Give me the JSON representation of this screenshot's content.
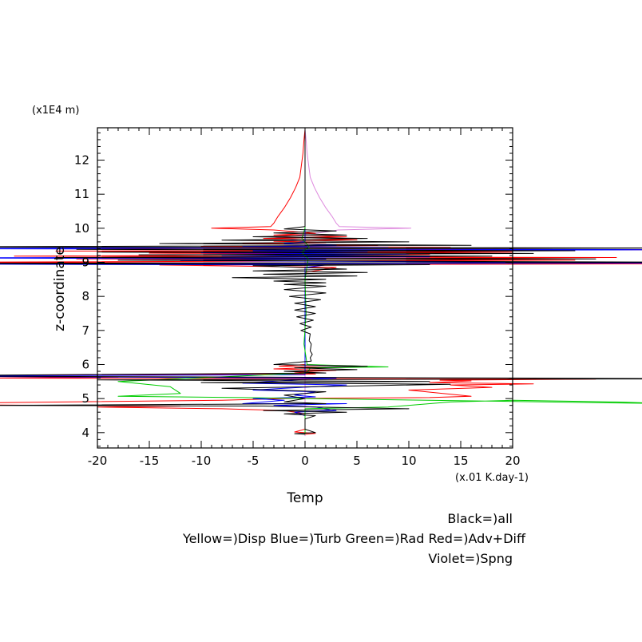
{
  "chart_data": {
    "type": "line",
    "xlabel": "Temp",
    "x_units": "(x.01 K.day-1)",
    "ylabel": "z-coordinate",
    "y_units": "(x1E4 m)",
    "xlim": [
      -20,
      20
    ],
    "ylim": [
      3.55,
      12.95
    ],
    "grid": false,
    "x_ticks": [
      -20,
      -15,
      -10,
      -5,
      0,
      5,
      10,
      15,
      20
    ],
    "y_ticks": [
      4,
      5,
      6,
      7,
      8,
      9,
      10,
      11,
      12
    ],
    "legend": [
      "Black=)all",
      "Yellow=)Disp Blue=)Turb Green=)Rad Red=)Adv+Diff",
      "Violet=)Spng"
    ],
    "series": [
      {
        "name": "Violet=)Spng",
        "color": "#dd88dd",
        "points": [
          [
            0,
            12.9
          ],
          [
            0.1,
            12.6
          ],
          [
            0.2,
            12.2
          ],
          [
            0.5,
            11.5
          ],
          [
            0.9,
            11.2
          ],
          [
            1.4,
            10.9
          ],
          [
            2.0,
            10.6
          ],
          [
            2.6,
            10.35
          ],
          [
            3.0,
            10.15
          ],
          [
            3.3,
            10.05
          ],
          [
            10.2,
            10.0
          ],
          [
            3.2,
            9.95
          ],
          [
            2.2,
            9.9
          ],
          [
            1.0,
            9.85
          ],
          [
            -2,
            9.75
          ],
          [
            -3,
            9.7
          ],
          [
            -1,
            9.65
          ],
          [
            0,
            9.6
          ],
          [
            0,
            9.0
          ],
          [
            0,
            3.9
          ]
        ]
      },
      {
        "name": "Red=)Adv+Diff",
        "color": "#ff0000",
        "points": [
          [
            0,
            12.9
          ],
          [
            -0.1,
            12.6
          ],
          [
            -0.2,
            12.2
          ],
          [
            -0.5,
            11.5
          ],
          [
            -0.9,
            11.2
          ],
          [
            -1.4,
            10.9
          ],
          [
            -2.0,
            10.6
          ],
          [
            -2.6,
            10.35
          ],
          [
            -3.0,
            10.15
          ],
          [
            -3.3,
            10.05
          ],
          [
            -9,
            10.0
          ],
          [
            -3,
            9.95
          ],
          [
            -1,
            9.9
          ],
          [
            1,
            9.85
          ],
          [
            -3,
            9.8
          ],
          [
            4,
            9.75
          ],
          [
            -4,
            9.7
          ],
          [
            5,
            9.66
          ],
          [
            -3,
            9.62
          ],
          [
            2,
            9.58
          ],
          [
            -6,
            9.55
          ],
          [
            7,
            9.5
          ],
          [
            -10,
            9.47
          ],
          [
            14,
            9.44
          ],
          [
            -33,
            9.4
          ],
          [
            35,
            9.37
          ],
          [
            -24,
            9.33
          ],
          [
            20,
            9.3
          ],
          [
            -15,
            9.27
          ],
          [
            12,
            9.23
          ],
          [
            -28,
            9.18
          ],
          [
            30,
            9.14
          ],
          [
            -22,
            9.1
          ],
          [
            26,
            9.06
          ],
          [
            -38,
            9.0
          ],
          [
            40,
            8.96
          ],
          [
            -14,
            8.92
          ],
          [
            3,
            8.85
          ],
          [
            0,
            8.7
          ],
          [
            0,
            6.0
          ],
          [
            -2.5,
            5.95
          ],
          [
            2,
            5.92
          ],
          [
            -3,
            5.87
          ],
          [
            3,
            5.83
          ],
          [
            -1,
            5.78
          ],
          [
            1,
            5.72
          ],
          [
            -40,
            5.66
          ],
          [
            -18,
            5.63
          ],
          [
            -30,
            5.6
          ],
          [
            28,
            5.57
          ],
          [
            13,
            5.54
          ],
          [
            16,
            5.52
          ],
          [
            12,
            5.47
          ],
          [
            22,
            5.43
          ],
          [
            14,
            5.4
          ],
          [
            18,
            5.33
          ],
          [
            10,
            5.25
          ],
          [
            16,
            5.07
          ],
          [
            12,
            5.03
          ],
          [
            -2,
            5.0
          ],
          [
            -8,
            4.95
          ],
          [
            -30,
            4.88
          ],
          [
            -36,
            4.82
          ],
          [
            -12,
            4.78
          ],
          [
            -20,
            4.75
          ],
          [
            -8,
            4.7
          ],
          [
            -2,
            4.65
          ],
          [
            0,
            4.55
          ],
          [
            0,
            4.1
          ],
          [
            -1,
            4.02
          ],
          [
            1,
            3.98
          ],
          [
            0,
            3.95
          ]
        ]
      },
      {
        "name": "Blue=)Turb",
        "color": "#0000ff",
        "points": [
          [
            0,
            12.5
          ],
          [
            0,
            9.6
          ],
          [
            -2,
            9.55
          ],
          [
            3,
            9.5
          ],
          [
            -6,
            9.47
          ],
          [
            8,
            9.44
          ],
          [
            -40,
            9.4
          ],
          [
            40,
            9.37
          ],
          [
            -5,
            9.34
          ],
          [
            6,
            9.31
          ],
          [
            -10,
            9.28
          ],
          [
            10,
            9.24
          ],
          [
            -8,
            9.2
          ],
          [
            12,
            9.16
          ],
          [
            -40,
            9.13
          ],
          [
            2,
            9.1
          ],
          [
            -12,
            9.05
          ],
          [
            40,
            8.98
          ],
          [
            -40,
            8.95
          ],
          [
            2,
            8.92
          ],
          [
            0,
            8.85
          ],
          [
            0,
            5.7
          ],
          [
            -40,
            5.66
          ],
          [
            3,
            5.6
          ],
          [
            -1,
            5.55
          ],
          [
            -6,
            5.45
          ],
          [
            4,
            5.4
          ],
          [
            -2,
            5.3
          ],
          [
            -5,
            5.25
          ],
          [
            1,
            5.2
          ],
          [
            -1,
            5.1
          ],
          [
            1,
            5.05
          ],
          [
            -5,
            5.0
          ],
          [
            -2,
            4.95
          ],
          [
            -6,
            4.85
          ],
          [
            4,
            4.85
          ],
          [
            -3,
            4.8
          ],
          [
            1,
            4.75
          ],
          [
            3,
            4.65
          ],
          [
            -1,
            4.6
          ],
          [
            0,
            4.5
          ],
          [
            0,
            3.95
          ]
        ]
      },
      {
        "name": "Green=)Rad",
        "color": "#00cc00",
        "points": [
          [
            0,
            12.5
          ],
          [
            0,
            10.0
          ],
          [
            -0.3,
            9.7
          ],
          [
            0.4,
            9.45
          ],
          [
            -0.3,
            9.3
          ],
          [
            0.3,
            9.1
          ],
          [
            0,
            8.5
          ],
          [
            0.1,
            7.5
          ],
          [
            -0.1,
            6.6
          ],
          [
            0.2,
            6.0
          ],
          [
            8,
            5.93
          ],
          [
            0.5,
            5.9
          ],
          [
            0.2,
            5.75
          ],
          [
            -18,
            5.5
          ],
          [
            -13,
            5.35
          ],
          [
            -12,
            5.15
          ],
          [
            -18,
            5.07
          ],
          [
            -6,
            5.03
          ],
          [
            0,
            5.0
          ],
          [
            35,
            4.85
          ],
          [
            30,
            4.9
          ],
          [
            20,
            4.95
          ],
          [
            14,
            4.9
          ],
          [
            8,
            4.75
          ],
          [
            0,
            4.7
          ],
          [
            0,
            3.95
          ]
        ]
      },
      {
        "name": "Black=)all",
        "color": "#000000",
        "points": [
          [
            0,
            12.9
          ],
          [
            0,
            10.05
          ],
          [
            -2,
            9.98
          ],
          [
            3,
            9.92
          ],
          [
            -3,
            9.86
          ],
          [
            4,
            9.8
          ],
          [
            -5,
            9.75
          ],
          [
            6,
            9.7
          ],
          [
            -8,
            9.65
          ],
          [
            10,
            9.6
          ],
          [
            -14,
            9.55
          ],
          [
            16,
            9.5
          ],
          [
            -40,
            9.45
          ],
          [
            38,
            9.42
          ],
          [
            -22,
            9.38
          ],
          [
            26,
            9.34
          ],
          [
            -20,
            9.3
          ],
          [
            22,
            9.26
          ],
          [
            -16,
            9.22
          ],
          [
            18,
            9.18
          ],
          [
            -24,
            9.14
          ],
          [
            28,
            9.1
          ],
          [
            -18,
            9.06
          ],
          [
            40,
            9.0
          ],
          [
            -40,
            8.97
          ],
          [
            12,
            8.93
          ],
          [
            -5,
            8.9
          ],
          [
            4,
            8.8
          ],
          [
            -5,
            8.75
          ],
          [
            6,
            8.7
          ],
          [
            -4,
            8.65
          ],
          [
            5,
            8.6
          ],
          [
            -7,
            8.55
          ],
          [
            2,
            8.5
          ],
          [
            -3,
            8.45
          ],
          [
            2,
            8.4
          ],
          [
            -2,
            8.35
          ],
          [
            2,
            8.3
          ],
          [
            -2,
            8.2
          ],
          [
            2,
            8.1
          ],
          [
            -1.5,
            8.0
          ],
          [
            1.5,
            7.9
          ],
          [
            -1,
            7.8
          ],
          [
            1,
            7.7
          ],
          [
            -1,
            7.6
          ],
          [
            1,
            7.5
          ],
          [
            -0.8,
            7.4
          ],
          [
            0.8,
            7.3
          ],
          [
            -0.5,
            7.2
          ],
          [
            0.6,
            7.1
          ],
          [
            -0.4,
            7.0
          ],
          [
            0.5,
            6.9
          ],
          [
            0.4,
            6.7
          ],
          [
            0.6,
            6.6
          ],
          [
            0.5,
            6.4
          ],
          [
            0.7,
            6.3
          ],
          [
            0.5,
            6.2
          ],
          [
            0.6,
            6.1
          ],
          [
            -3,
            6.0
          ],
          [
            6,
            5.95
          ],
          [
            -1,
            5.9
          ],
          [
            5,
            5.85
          ],
          [
            -2,
            5.8
          ],
          [
            2,
            5.75
          ],
          [
            -40,
            5.67
          ],
          [
            -4,
            5.63
          ],
          [
            40,
            5.58
          ],
          [
            -20,
            5.55
          ],
          [
            12,
            5.5
          ],
          [
            -10,
            5.47
          ],
          [
            14,
            5.42
          ],
          [
            -8,
            5.3
          ],
          [
            2,
            5.2
          ],
          [
            -2,
            5.1
          ],
          [
            0,
            5.0
          ],
          [
            -2,
            4.9
          ],
          [
            2,
            4.85
          ],
          [
            -30,
            4.8
          ],
          [
            -4,
            4.78
          ],
          [
            10,
            4.7
          ],
          [
            -4,
            4.65
          ],
          [
            4,
            4.6
          ],
          [
            -2,
            4.55
          ],
          [
            1,
            4.5
          ],
          [
            0,
            4.4
          ],
          [
            0,
            4.1
          ],
          [
            1,
            4.0
          ],
          [
            -1,
            3.97
          ],
          [
            0,
            3.95
          ]
        ]
      }
    ]
  }
}
